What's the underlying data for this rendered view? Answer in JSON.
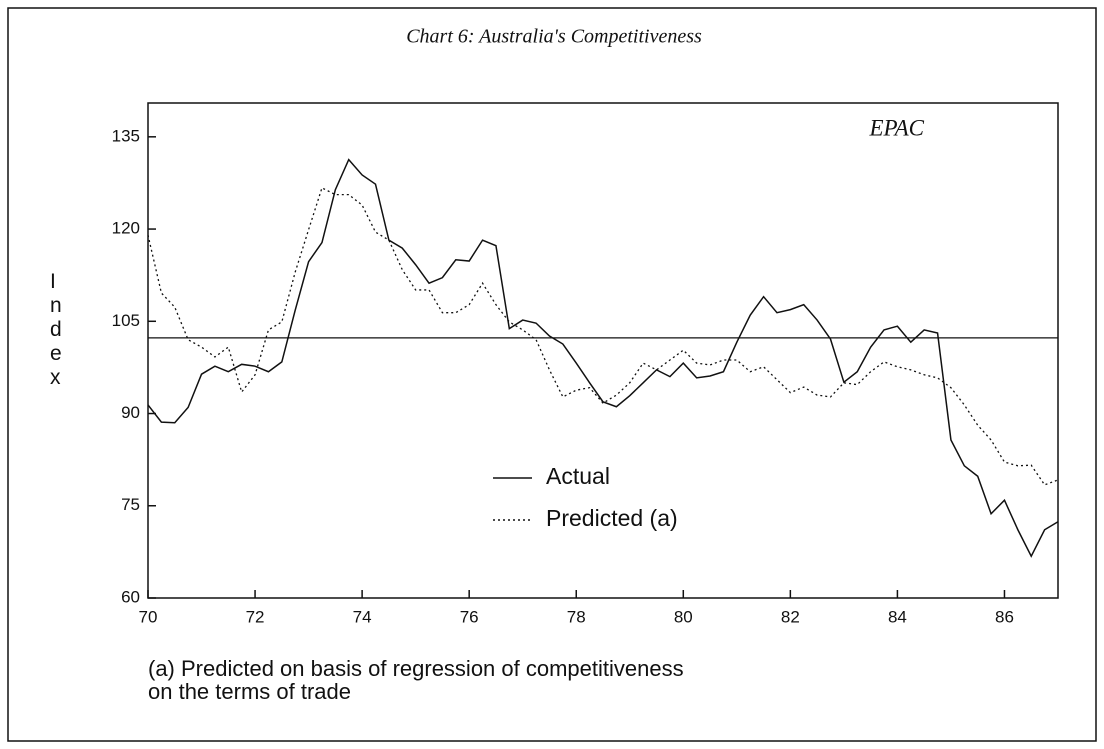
{
  "chart_data": {
    "type": "line",
    "title": "Chart 6: Australia's Competitiveness",
    "annotation": "EPAC",
    "y_label": "Index",
    "notes": [
      "(a) Predicted on basis of regression of competitiveness",
      "on the terms of trade"
    ],
    "x": [
      70,
      70.25,
      70.5,
      70.75,
      71,
      71.25,
      71.5,
      71.75,
      72,
      72.25,
      72.5,
      72.75,
      73,
      73.25,
      73.5,
      73.75,
      74,
      74.25,
      74.5,
      74.75,
      75,
      75.25,
      75.5,
      75.75,
      76,
      76.25,
      76.5,
      76.75,
      77,
      77.25,
      77.5,
      77.75,
      78,
      78.25,
      78.5,
      78.75,
      79,
      79.25,
      79.5,
      79.75,
      80,
      80.25,
      80.5,
      80.75,
      81,
      81.25,
      81.5,
      81.75,
      82,
      82.25,
      82.5,
      82.75,
      83,
      83.25,
      83.5,
      83.75,
      84,
      84.25,
      84.5,
      84.75,
      85,
      85.25,
      85.5,
      85.75,
      86,
      86.25,
      86.5,
      86.75,
      87
    ],
    "series": [
      {
        "name": "Actual",
        "color": "#111111",
        "style": "solid",
        "values": [
          91.4,
          88.6,
          88.5,
          91,
          96.4,
          97.7,
          96.8,
          98,
          97.7,
          96.8,
          98.4,
          106.8,
          114.7,
          117.8,
          126.4,
          131.3,
          128.8,
          127.3,
          118.2,
          116.9,
          114.2,
          111.2,
          112.1,
          115,
          114.8,
          118.2,
          117.3,
          103.8,
          105.2,
          104.7,
          102.6,
          101.3,
          98.2,
          95,
          91.9,
          91.1,
          92.9,
          95,
          97.1,
          96,
          98.2,
          95.8,
          96.1,
          96.8,
          101.6,
          106,
          109,
          106.4,
          106.9,
          107.7,
          105.2,
          102.1,
          95.1,
          96.8,
          100.8,
          103.6,
          104.2,
          101.6,
          103.6,
          103.1,
          85.7,
          81.5,
          79.8,
          73.7,
          75.9,
          71.1,
          66.8,
          71.1,
          72.4
        ]
      },
      {
        "name": "Predicted (a)",
        "color": "#111111",
        "style": "dotted",
        "values": [
          119,
          109.6,
          107.3,
          102,
          100.8,
          99.2,
          100.8,
          93.5,
          96.3,
          103.6,
          104.9,
          113,
          119.9,
          126.7,
          125.6,
          125.6,
          123.9,
          119.5,
          118.2,
          113.4,
          110.1,
          110.1,
          106.4,
          106.4,
          107.7,
          111.2,
          107.7,
          104.9,
          103.6,
          102,
          97.1,
          92.7,
          93.8,
          94.2,
          91.7,
          93,
          95,
          98.2,
          97.1,
          98.7,
          100.3,
          98.2,
          97.9,
          98.7,
          98.7,
          96.8,
          97.6,
          95.5,
          93.4,
          94.3,
          93,
          92.7,
          95,
          94.7,
          96.8,
          98.4,
          97.6,
          97.1,
          96.3,
          95.8,
          94.2,
          91.4,
          88.1,
          85.7,
          82.1,
          81.5,
          81.6,
          78.4,
          79.2
        ]
      }
    ],
    "reference_value": 102.3,
    "xlim": [
      70,
      87
    ],
    "xticks": [
      70,
      72,
      74,
      76,
      78,
      80,
      82,
      84,
      86
    ],
    "ylim": [
      60,
      140.5
    ],
    "yticks": [
      60,
      75,
      90,
      105,
      120,
      135
    ]
  }
}
